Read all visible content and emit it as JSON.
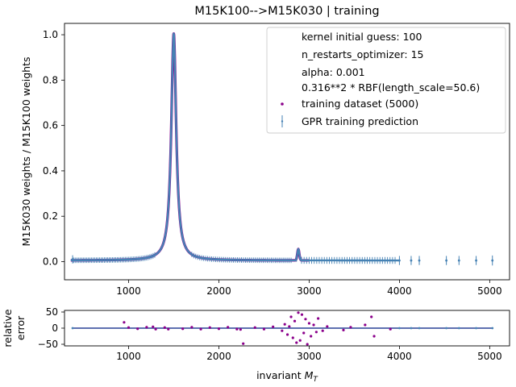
{
  "chart_data": [
    {
      "type": "scatter",
      "title": "M15K100-->M15K030 | training",
      "xlabel": "",
      "ylabel": "M15K030 weights / M15K100 weights",
      "xlim": [
        290,
        5220
      ],
      "ylim": [
        -0.08,
        1.05
      ],
      "xticks": [
        1000,
        2000,
        3000,
        4000,
        5000
      ],
      "yticks": [
        0.0,
        0.2,
        0.4,
        0.6,
        0.8,
        1.0
      ],
      "xtick_labels": [
        "1000",
        "2000",
        "3000",
        "4000",
        "5000"
      ],
      "ytick_labels": [
        "0.0",
        "0.2",
        "0.4",
        "0.6",
        "0.8",
        "1.0"
      ],
      "legend_position": "top-right",
      "legend": {
        "info_lines": [
          "kernel initial guess: 100",
          "n_restarts_optimizer: 15",
          "alpha: 0.001",
          "0.316**2 * RBF(length_scale=50.6)"
        ],
        "entries": [
          {
            "label": "training dataset (5000)",
            "marker": "dot",
            "color": "#8b008b"
          },
          {
            "label": "GPR training prediction",
            "marker": "errorbar",
            "color": "#4682b4"
          }
        ]
      },
      "peak_shape": {
        "x0": 1500,
        "gamma": 33,
        "baseline": 0.005
      },
      "bump": {
        "x": 2880,
        "y": 0.05
      },
      "sparse_errorbar_points": [
        {
          "x": 380,
          "y": 0.01,
          "err": 0.018
        },
        {
          "x": 4000,
          "y": 0.005,
          "err": 0.02
        },
        {
          "x": 4130,
          "y": 0.005,
          "err": 0.02
        },
        {
          "x": 4220,
          "y": 0.005,
          "err": 0.02
        },
        {
          "x": 4520,
          "y": 0.005,
          "err": 0.02
        },
        {
          "x": 4660,
          "y": 0.005,
          "err": 0.02
        },
        {
          "x": 4850,
          "y": 0.005,
          "err": 0.02
        },
        {
          "x": 5030,
          "y": 0.005,
          "err": 0.022
        }
      ],
      "series": [
        {
          "name": "training dataset (5000)",
          "color": "#8b008b"
        },
        {
          "name": "GPR training prediction",
          "color": "#4682b4"
        }
      ]
    },
    {
      "type": "scatter",
      "title": "",
      "xlabel": "invariant M_T",
      "ylabel": "relative error",
      "xlim": [
        290,
        5220
      ],
      "ylim": [
        -55,
        55
      ],
      "xticks": [
        1000,
        2000,
        3000,
        4000,
        5000
      ],
      "yticks": [
        -50,
        0,
        50
      ],
      "xtick_labels": [
        "1000",
        "2000",
        "3000",
        "4000",
        "5000"
      ],
      "ytick_labels": [
        "−50",
        "0",
        "50"
      ],
      "outliers": [
        {
          "x": 950,
          "y": 18
        },
        {
          "x": 1270,
          "y": 4
        },
        {
          "x": 1440,
          "y": -3
        },
        {
          "x": 2240,
          "y": -4
        },
        {
          "x": 2270,
          "y": -48
        },
        {
          "x": 2700,
          "y": -8
        },
        {
          "x": 2730,
          "y": 12
        },
        {
          "x": 2760,
          "y": -20
        },
        {
          "x": 2780,
          "y": 5
        },
        {
          "x": 2800,
          "y": 35
        },
        {
          "x": 2820,
          "y": -30
        },
        {
          "x": 2840,
          "y": 22
        },
        {
          "x": 2860,
          "y": -45
        },
        {
          "x": 2880,
          "y": 48
        },
        {
          "x": 2900,
          "y": -38
        },
        {
          "x": 2920,
          "y": 42
        },
        {
          "x": 2940,
          "y": -15
        },
        {
          "x": 2960,
          "y": 28
        },
        {
          "x": 2980,
          "y": -50
        },
        {
          "x": 3000,
          "y": 15
        },
        {
          "x": 3020,
          "y": -25
        },
        {
          "x": 3050,
          "y": 10
        },
        {
          "x": 3080,
          "y": -12
        },
        {
          "x": 3100,
          "y": 30
        },
        {
          "x": 3150,
          "y": -8
        },
        {
          "x": 3200,
          "y": 5
        },
        {
          "x": 3380,
          "y": -6
        },
        {
          "x": 3460,
          "y": 3
        },
        {
          "x": 3620,
          "y": 10
        },
        {
          "x": 3690,
          "y": 35
        },
        {
          "x": 3720,
          "y": -25
        },
        {
          "x": 3900,
          "y": -3
        }
      ],
      "band_points": [
        {
          "x": 1000,
          "y": 2
        },
        {
          "x": 1100,
          "y": -2
        },
        {
          "x": 1200,
          "y": 3
        },
        {
          "x": 1300,
          "y": -3
        },
        {
          "x": 1400,
          "y": 2
        },
        {
          "x": 1600,
          "y": -2
        },
        {
          "x": 1700,
          "y": 3
        },
        {
          "x": 1800,
          "y": -3
        },
        {
          "x": 1900,
          "y": 2
        },
        {
          "x": 2000,
          "y": -2
        },
        {
          "x": 2100,
          "y": 3
        },
        {
          "x": 2200,
          "y": -3
        },
        {
          "x": 2400,
          "y": 2
        },
        {
          "x": 2500,
          "y": -3
        },
        {
          "x": 2600,
          "y": 4
        }
      ],
      "series": [
        {
          "name": "",
          "color": "#8b008b"
        },
        {
          "name": "",
          "color": "#4682b4"
        }
      ]
    }
  ]
}
